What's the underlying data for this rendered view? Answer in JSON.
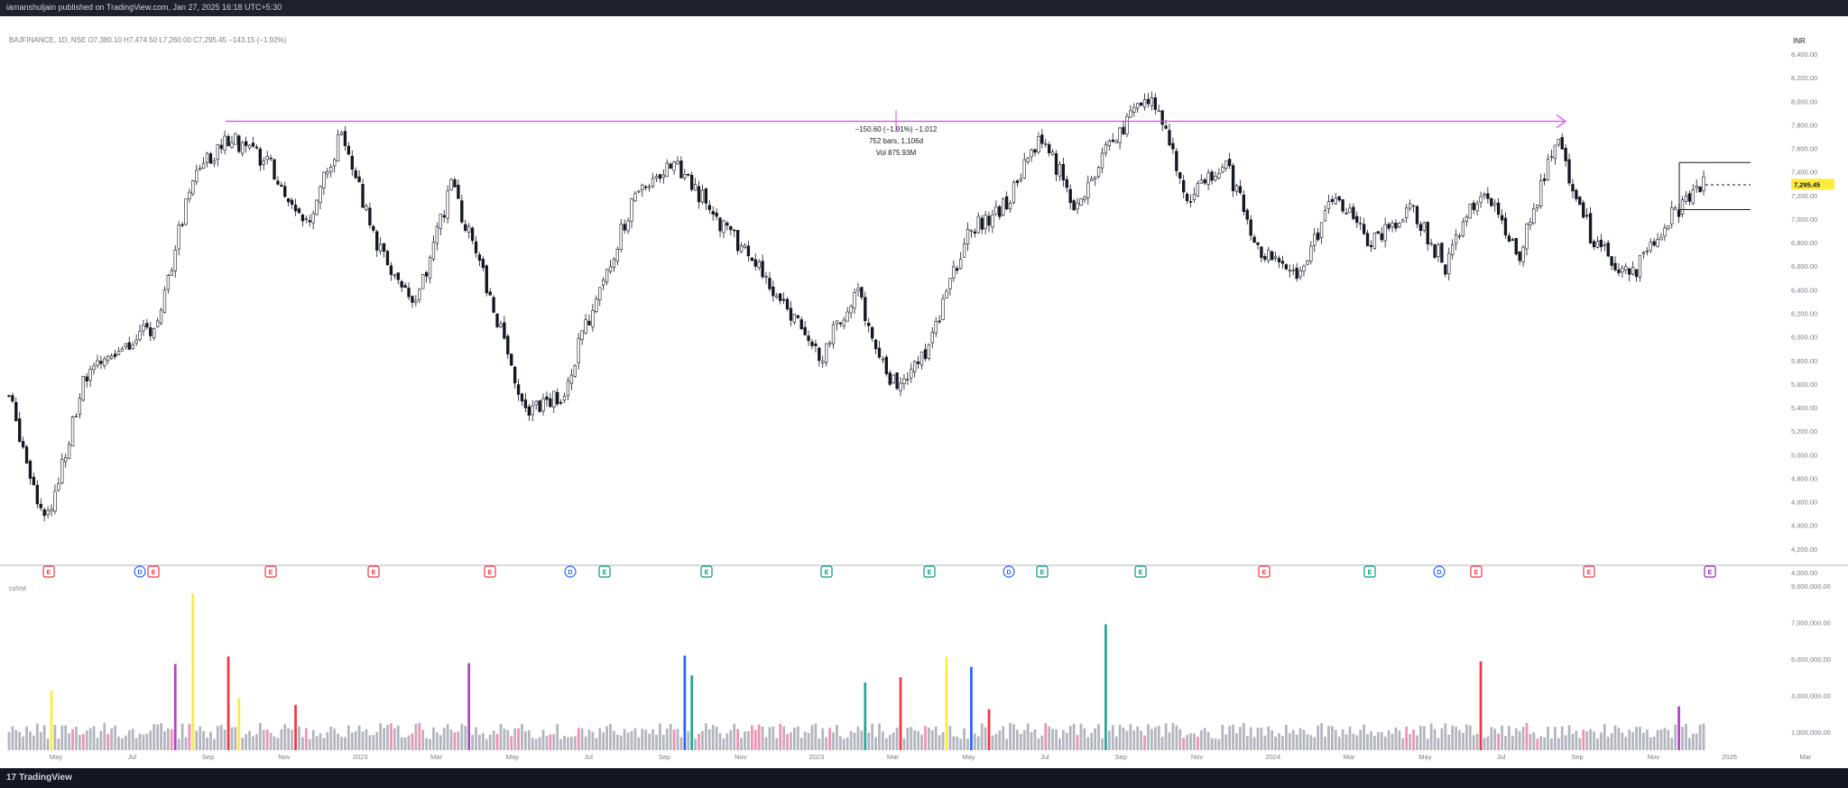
{
  "header": {
    "publish": "iamanshuljain published on TradingView.com, Jan 27, 2025 16:18 UTC+5:30"
  },
  "footer": {
    "logo_text": "TradingView",
    "logo_mark": "17"
  },
  "legend": {
    "symbol": "BAJFINANCE, 1D, NSE  O7,380.10  H7,474.50  L7,260.00  C7,295.45  −143.15 (−1.92%)",
    "volume": "colVol"
  },
  "price_axis": {
    "currency": "INR",
    "ticks": [
      "8,400.00",
      "8,200.00",
      "8,000.00",
      "7,800.00",
      "7,600.00",
      "7,400.00",
      "7,200.00",
      "7,000.00",
      "6,800.00",
      "6,600.00",
      "6,400.00",
      "6,200.00",
      "6,000.00",
      "5,800.00",
      "5,600.00",
      "5,400.00",
      "5,200.00",
      "5,000.00",
      "4,800.00",
      "4,600.00",
      "4,400.00",
      "4,200.00",
      "4,000.00"
    ],
    "last_price": "7,295.45",
    "last_price_color": "#ffeb3b"
  },
  "volume_axis": {
    "ticks": [
      "9,000,000.00",
      "7,000,000.00",
      "5,000,000.00",
      "3,000,000.00",
      "1,000,000.00"
    ]
  },
  "time_axis": {
    "ticks": [
      "May",
      "Jul",
      "Sep",
      "Nov",
      "2023",
      "Mar",
      "May",
      "Jul",
      "Sep",
      "Nov",
      "2023",
      "Mar",
      "May",
      "Jul",
      "Sep",
      "Nov",
      "2024",
      "Mar",
      "May",
      "Jul",
      "Sep",
      "Nov",
      "2025",
      "Mar"
    ]
  },
  "measure": {
    "line1": "−150.60 (−1.91%) −1,012",
    "line2": "752 bars, 1,106d",
    "line3": "Vol 875.93M"
  },
  "events": [
    {
      "label": "E",
      "color": "#f23645",
      "name": "earnings-marker"
    },
    {
      "label": "D",
      "color": "#2962ff",
      "name": "dividend-marker"
    },
    {
      "label": "E",
      "color": "#f23645",
      "name": "earnings-marker"
    },
    {
      "label": "E",
      "color": "#f23645",
      "name": "earnings-marker"
    },
    {
      "label": "E",
      "color": "#f23645",
      "name": "earnings-marker"
    },
    {
      "label": "E",
      "color": "#f23645",
      "name": "earnings-marker"
    },
    {
      "label": "D",
      "color": "#2962ff",
      "name": "dividend-marker"
    },
    {
      "label": "E",
      "color": "#089981",
      "name": "earnings-marker"
    },
    {
      "label": "E",
      "color": "#089981",
      "name": "earnings-marker"
    },
    {
      "label": "E",
      "color": "#089981",
      "name": "earnings-marker"
    },
    {
      "label": "E",
      "color": "#089981",
      "name": "earnings-marker"
    },
    {
      "label": "D",
      "color": "#2962ff",
      "name": "dividend-marker"
    },
    {
      "label": "E",
      "color": "#089981",
      "name": "earnings-marker"
    },
    {
      "label": "E",
      "color": "#089981",
      "name": "earnings-marker"
    },
    {
      "label": "E",
      "color": "#f23645",
      "name": "earnings-marker"
    },
    {
      "label": "E",
      "color": "#089981",
      "name": "earnings-marker"
    },
    {
      "label": "D",
      "color": "#2962ff",
      "name": "dividend-marker"
    },
    {
      "label": "E",
      "color": "#f23645",
      "name": "earnings-marker"
    },
    {
      "label": "E",
      "color": "#f23645",
      "name": "earnings-marker"
    },
    {
      "label": "E",
      "color": "#9c27b0",
      "name": "earnings-marker"
    }
  ],
  "chart_data": {
    "type": "candlestick",
    "symbol": "BAJFINANCE",
    "interval": "1D",
    "exchange": "NSE",
    "last": {
      "open": 7380.1,
      "high": 7474.5,
      "low": 7260.0,
      "close": 7295.45,
      "change": -143.15,
      "change_pct": -1.92
    },
    "ylim": [
      4000,
      8400
    ],
    "volume_ylim": [
      0,
      9000000
    ],
    "price_path": [
      {
        "t": "2022-03",
        "p": 5500
      },
      {
        "t": "2022-04",
        "p": 4400
      },
      {
        "t": "2022-05",
        "p": 5600
      },
      {
        "t": "2022-06",
        "p": 5900
      },
      {
        "t": "2022-07",
        "p": 6100
      },
      {
        "t": "2022-08",
        "p": 7400
      },
      {
        "t": "2022-09",
        "p": 7700
      },
      {
        "t": "2022-10",
        "p": 7500
      },
      {
        "t": "2022-11",
        "p": 6900
      },
      {
        "t": "2022-12",
        "p": 7700
      },
      {
        "t": "2023-01",
        "p": 6800
      },
      {
        "t": "2023-02",
        "p": 6200
      },
      {
        "t": "2023-03",
        "p": 7300
      },
      {
        "t": "2023-04",
        "p": 6400
      },
      {
        "t": "2023-05",
        "p": 5400
      },
      {
        "t": "2023-06",
        "p": 5500
      },
      {
        "t": "2023-07",
        "p": 6400
      },
      {
        "t": "2023-08",
        "p": 7200
      },
      {
        "t": "2023-09",
        "p": 7500
      },
      {
        "t": "2023-10",
        "p": 7100
      },
      {
        "t": "2023-11",
        "p": 6700
      },
      {
        "t": "2023-12",
        "p": 6300
      },
      {
        "t": "2024-01",
        "p": 5800
      },
      {
        "t": "2024-02",
        "p": 6400
      },
      {
        "t": "2024-03",
        "p": 5600
      },
      {
        "t": "2024-04",
        "p": 5900
      },
      {
        "t": "2024-05",
        "p": 6900
      },
      {
        "t": "2024-06",
        "p": 7100
      },
      {
        "t": "2024-07",
        "p": 7700
      },
      {
        "t": "2024-08",
        "p": 7100
      },
      {
        "t": "2024-09",
        "p": 7700
      },
      {
        "t": "2024-10",
        "p": 8050
      },
      {
        "t": "2024-11",
        "p": 7200
      },
      {
        "t": "2024-12",
        "p": 7500
      },
      {
        "t": "2025-01",
        "p": 6700
      },
      {
        "t": "2025-02",
        "p": 6500
      },
      {
        "t": "2025-03",
        "p": 7200
      },
      {
        "t": "2025-04",
        "p": 6800
      },
      {
        "t": "2025-05",
        "p": 7100
      },
      {
        "t": "2025-06",
        "p": 6600
      },
      {
        "t": "2025-07",
        "p": 7300
      },
      {
        "t": "2025-08",
        "p": 6700
      },
      {
        "t": "2025-09",
        "p": 7700
      },
      {
        "t": "2025-10",
        "p": 6800
      },
      {
        "t": "2025-11",
        "p": 6500
      },
      {
        "t": "2025-12",
        "p": 7000
      },
      {
        "t": "2026-01",
        "p": 7300
      }
    ],
    "resistance_level": 7830,
    "consolidation_box": {
      "upper": 7480,
      "lower": 7080,
      "mid": 7290
    },
    "annotations": [
      "−150.60 (−1.91%) −1,012",
      "752 bars, 1,106d",
      "Vol 875.93M"
    ]
  }
}
